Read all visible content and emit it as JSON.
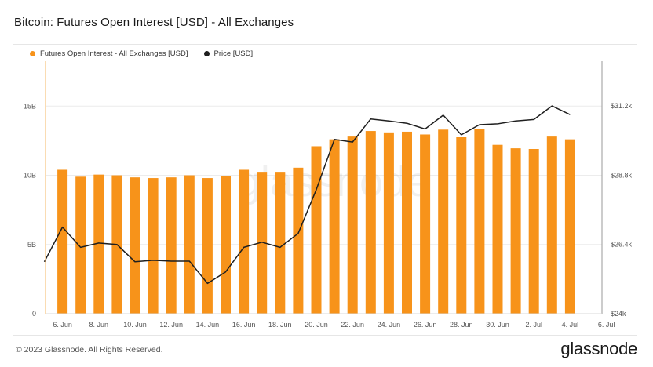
{
  "title": "Bitcoin: Futures Open Interest [USD] - All Exchanges",
  "legend": {
    "oi_label": "Futures Open Interest - All Exchanges [USD]",
    "price_label": "Price [USD]"
  },
  "watermark": "glassnode",
  "footer": {
    "copyright": "© 2023 Glassnode. All Rights Reserved.",
    "brand": "glassnode"
  },
  "colors": {
    "bar": "#f7931a",
    "price_line": "#1f1f1f",
    "grid": "#ececec",
    "axis_text": "#555555"
  },
  "chart_data": {
    "type": "bar",
    "x": [
      "5 Jun",
      "6 Jun",
      "7 Jun",
      "8 Jun",
      "9 Jun",
      "10 Jun",
      "11 Jun",
      "12 Jun",
      "13 Jun",
      "14 Jun",
      "15 Jun",
      "16 Jun",
      "17 Jun",
      "18 Jun",
      "19 Jun",
      "20 Jun",
      "21 Jun",
      "22 Jun",
      "23 Jun",
      "24 Jun",
      "25 Jun",
      "26 Jun",
      "27 Jun",
      "28 Jun",
      "29 Jun",
      "30 Jun",
      "1 Jul",
      "2 Jul",
      "3 Jul",
      "4 Jul"
    ],
    "x_ticks": [
      "6. Jun",
      "8. Jun",
      "10. Jun",
      "12. Jun",
      "14. Jun",
      "16. Jun",
      "18. Jun",
      "20. Jun",
      "22. Jun",
      "24. Jun",
      "26. Jun",
      "28. Jun",
      "30. Jun",
      "2. Jul",
      "4. Jul",
      "6. Jul"
    ],
    "series": [
      {
        "name": "Futures Open Interest - All Exchanges [USD]",
        "type": "bar",
        "axis": "left",
        "x": [
          "6 Jun",
          "7 Jun",
          "8 Jun",
          "9 Jun",
          "10 Jun",
          "11 Jun",
          "12 Jun",
          "13 Jun",
          "14 Jun",
          "15 Jun",
          "16 Jun",
          "17 Jun",
          "18 Jun",
          "19 Jun",
          "20 Jun",
          "21 Jun",
          "22 Jun",
          "23 Jun",
          "24 Jun",
          "25 Jun",
          "26 Jun",
          "27 Jun",
          "28 Jun",
          "29 Jun",
          "30 Jun",
          "1 Jul",
          "2 Jul",
          "3 Jul",
          "4 Jul"
        ],
        "values": [
          10.4,
          9.9,
          10.05,
          10.0,
          9.85,
          9.8,
          9.85,
          10.0,
          9.8,
          9.95,
          10.4,
          10.25,
          10.25,
          10.55,
          12.1,
          12.6,
          12.8,
          13.2,
          13.1,
          13.15,
          12.95,
          13.3,
          12.75,
          13.35,
          12.2,
          11.95,
          11.9,
          12.8,
          12.6
        ]
      },
      {
        "name": "Price [USD]",
        "type": "line",
        "axis": "right",
        "x": [
          "5 Jun",
          "6 Jun",
          "7 Jun",
          "8 Jun",
          "9 Jun",
          "10 Jun",
          "11 Jun",
          "12 Jun",
          "13 Jun",
          "14 Jun",
          "15 Jun",
          "16 Jun",
          "17 Jun",
          "18 Jun",
          "19 Jun",
          "20 Jun",
          "21 Jun",
          "22 Jun",
          "23 Jun",
          "24 Jun",
          "25 Jun",
          "26 Jun",
          "27 Jun",
          "28 Jun",
          "29 Jun",
          "30 Jun",
          "1 Jul",
          "2 Jul",
          "3 Jul",
          "4 Jul"
        ],
        "values": [
          25.8,
          27.0,
          26.3,
          26.45,
          26.4,
          25.8,
          25.85,
          25.82,
          25.82,
          25.05,
          25.45,
          26.3,
          26.48,
          26.3,
          26.78,
          28.3,
          30.04,
          29.95,
          30.75,
          30.68,
          30.6,
          30.4,
          30.88,
          30.2,
          30.55,
          30.58,
          30.68,
          30.73,
          31.2,
          30.9
        ]
      }
    ],
    "y_left": {
      "ticks": [
        "0",
        "5B",
        "10B",
        "15B"
      ],
      "range": [
        0,
        18.7
      ],
      "unit": "B"
    },
    "y_right": {
      "ticks": [
        "$24k",
        "$26.4k",
        "$28.8k",
        "$31.2k"
      ],
      "range": [
        24.0,
        32.97
      ],
      "unit": "k"
    },
    "grid": true,
    "legend_position": "top-left"
  }
}
